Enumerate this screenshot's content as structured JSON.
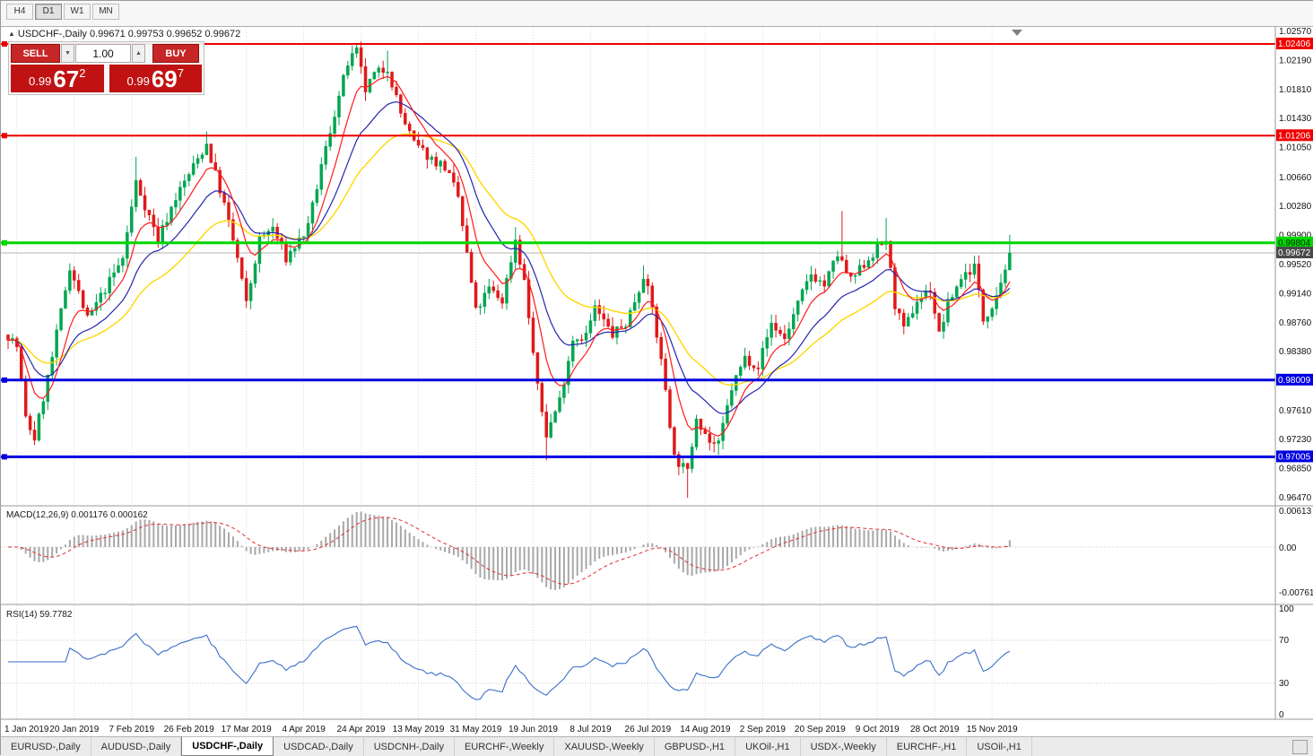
{
  "toolbar": {
    "buttons": [
      "H4",
      "D1",
      "W1",
      "MN"
    ],
    "active": "D1"
  },
  "chart": {
    "title_arrow": "▲",
    "title": "USDCHF-,Daily 0.99671 0.99753 0.99652 0.99672"
  },
  "trade": {
    "sell_label": "SELL",
    "buy_label": "BUY",
    "volume": "1.00",
    "spin_down_icon": "▼",
    "spin_up_icon": "▲",
    "sell_price": {
      "prefix": "0.99",
      "big": "67",
      "sup": "2"
    },
    "buy_price": {
      "prefix": "0.99",
      "big": "69",
      "sup": "7"
    }
  },
  "chart_data": {
    "type": "candlestick",
    "symbol": "USDCHF-",
    "timeframe": "Daily",
    "quote": {
      "open": "0.99671",
      "high": "0.99753",
      "low": "0.99652",
      "close": "0.99672"
    },
    "colors": {
      "up": "#00a651",
      "down": "#e01818",
      "ma_fast": "#ff1a1a",
      "ma_mid": "#2424b0",
      "ma_slow": "#ffd800",
      "rsi": "#3b6fc9",
      "macd_signal": "#e03030",
      "macd_hist": "#a8a8a8",
      "level_red": "#ee0000",
      "level_green": "#00d800",
      "level_blue": "#0000e0"
    },
    "y_axis": {
      "min": 0.9647,
      "max": 1.0257,
      "ticks": [
        "1.02570",
        "1.02190",
        "1.01810",
        "1.01430",
        "1.01050",
        "1.00660",
        "1.00280",
        "0.99900",
        "0.99520",
        "0.99140",
        "0.98760",
        "0.98380",
        "0.97610",
        "0.97230",
        "0.96850",
        "0.96470"
      ]
    },
    "x_labels": [
      "1 Jan 2019",
      "20 Jan 2019",
      "7 Feb 2019",
      "26 Feb 2019",
      "17 Mar 2019",
      "4 Apr 2019",
      "24 Apr 2019",
      "13 May 2019",
      "31 May 2019",
      "19 Jun 2019",
      "8 Jul 2019",
      "26 Jul 2019",
      "14 Aug 2019",
      "2 Sep 2019",
      "20 Sep 2019",
      "9 Oct 2019",
      "28 Oct 2019",
      "15 Nov 2019"
    ],
    "bars_per_label": 13,
    "label_start_bar": 2,
    "bar_count": 228,
    "last_close": 0.99672,
    "levels": [
      {
        "price": 1.02406,
        "label": "1.02406",
        "color": "#ee0000",
        "badge_bg": "#ee0000",
        "badge_fg": "#ffffff",
        "width": 2,
        "handle": true
      },
      {
        "price": 1.01206,
        "label": "1.01206",
        "color": "#ee0000",
        "badge_bg": "#ee0000",
        "badge_fg": "#ffffff",
        "width": 2,
        "handle": true
      },
      {
        "price": 0.99804,
        "label": "0.99804",
        "color": "#00d800",
        "badge_bg": "#00d800",
        "badge_fg": "#002200",
        "width": 3,
        "handle": true
      },
      {
        "price": 0.99672,
        "label": "0.99672",
        "color": "#b4b4b4",
        "badge_bg": "#4a4a4a",
        "badge_fg": "#ffffff",
        "width": 1,
        "current": true
      },
      {
        "price": 0.98009,
        "label": "0.98009",
        "color": "#0000e0",
        "badge_bg": "#0000e0",
        "badge_fg": "#ffffff",
        "width": 3,
        "handle": true
      },
      {
        "price": 0.97005,
        "label": "0.97005",
        "color": "#0000e0",
        "badge_bg": "#0000e0",
        "badge_fg": "#ffffff",
        "width": 3,
        "handle": true
      }
    ],
    "price_path_anchors": [
      [
        0,
        0.986
      ],
      [
        2,
        0.9845
      ],
      [
        4,
        0.975
      ],
      [
        6,
        0.9725
      ],
      [
        10,
        0.983
      ],
      [
        14,
        0.995
      ],
      [
        18,
        0.988
      ],
      [
        22,
        0.992
      ],
      [
        26,
        0.996
      ],
      [
        29,
        1.006
      ],
      [
        31,
        1.003
      ],
      [
        34,
        0.9985
      ],
      [
        38,
        1.004
      ],
      [
        42,
        1.008
      ],
      [
        45,
        1.011
      ],
      [
        49,
        1.003
      ],
      [
        52,
        0.996
      ],
      [
        54,
        0.99
      ],
      [
        57,
        0.9985
      ],
      [
        60,
        1.0
      ],
      [
        63,
        0.996
      ],
      [
        68,
        1.0
      ],
      [
        71,
        1.008
      ],
      [
        74,
        1.015
      ],
      [
        77,
        1.0215
      ],
      [
        79,
        1.023
      ],
      [
        81,
        1.018
      ],
      [
        83,
        1.02
      ],
      [
        86,
        1.021
      ],
      [
        89,
        1.015
      ],
      [
        92,
        1.011
      ],
      [
        96,
        1.009
      ],
      [
        99,
        1.008
      ],
      [
        102,
        1.004
      ],
      [
        106,
        0.989
      ],
      [
        109,
        0.992
      ],
      [
        112,
        0.9905
      ],
      [
        115,
        0.9985
      ],
      [
        117,
        0.993
      ],
      [
        120,
        0.979
      ],
      [
        122,
        0.973
      ],
      [
        125,
        0.9775
      ],
      [
        128,
        0.9855
      ],
      [
        131,
        0.986
      ],
      [
        133,
        0.9895
      ],
      [
        137,
        0.986
      ],
      [
        140,
        0.9875
      ],
      [
        143,
        0.992
      ],
      [
        144,
        0.994
      ],
      [
        146,
        0.9895
      ],
      [
        149,
        0.979
      ],
      [
        151,
        0.97
      ],
      [
        154,
        0.968
      ],
      [
        156,
        0.9755
      ],
      [
        159,
        0.972
      ],
      [
        161,
        0.9715
      ],
      [
        164,
        0.979
      ],
      [
        167,
        0.983
      ],
      [
        170,
        0.982
      ],
      [
        173,
        0.9875
      ],
      [
        176,
        0.9855
      ],
      [
        179,
        0.99
      ],
      [
        182,
        0.994
      ],
      [
        185,
        0.9925
      ],
      [
        188,
        0.9965
      ],
      [
        191,
        0.993
      ],
      [
        195,
        0.996
      ],
      [
        199,
        0.9985
      ],
      [
        201,
        0.99
      ],
      [
        203,
        0.9865
      ],
      [
        206,
        0.9905
      ],
      [
        209,
        0.992
      ],
      [
        211,
        0.986
      ],
      [
        213,
        0.99
      ],
      [
        216,
        0.9935
      ],
      [
        219,
        0.995
      ],
      [
        221,
        0.988
      ],
      [
        223,
        0.99
      ],
      [
        225,
        0.993
      ],
      [
        227,
        0.9967
      ]
    ],
    "spikes": [
      [
        6,
        "low",
        0.9716
      ],
      [
        29,
        "high",
        1.0093
      ],
      [
        45,
        "high",
        1.0126
      ],
      [
        79,
        "high",
        1.0242
      ],
      [
        86,
        "high",
        1.0232
      ],
      [
        115,
        "high",
        1.0001
      ],
      [
        122,
        "low",
        0.9696
      ],
      [
        144,
        "high",
        0.9951
      ],
      [
        154,
        "low",
        0.9647
      ],
      [
        161,
        "low",
        0.9703
      ],
      [
        189,
        "high",
        1.0022
      ],
      [
        199,
        "high",
        1.0013
      ],
      [
        227,
        "high",
        0.9991
      ]
    ],
    "indicators": {
      "macd": {
        "label": "MACD(12,26,9) 0.001176 0.000162",
        "params": [
          12,
          26,
          9
        ],
        "values": [
          "0.001176",
          "0.000162"
        ],
        "axis": [
          "0.00613",
          "0.00",
          "-0.00761"
        ]
      },
      "rsi": {
        "label": "RSI(14) 59.7782",
        "period": 14,
        "value": 59.7782,
        "axis": [
          "100",
          "70",
          "30",
          "0"
        ],
        "levels": [
          70,
          30
        ]
      }
    }
  },
  "tabs": {
    "items": [
      "EURUSD-,Daily",
      "AUDUSD-,Daily",
      "USDCHF-,Daily",
      "USDCAD-,Daily",
      "USDCNH-,Daily",
      "EURCHF-,Weekly",
      "XAUUSD-,Weekly",
      "GBPUSD-,H1",
      "UKOil-,H1",
      "USDX-,Weekly",
      "EURCHF-,H1",
      "USOil-,H1"
    ],
    "active_index": 2
  }
}
